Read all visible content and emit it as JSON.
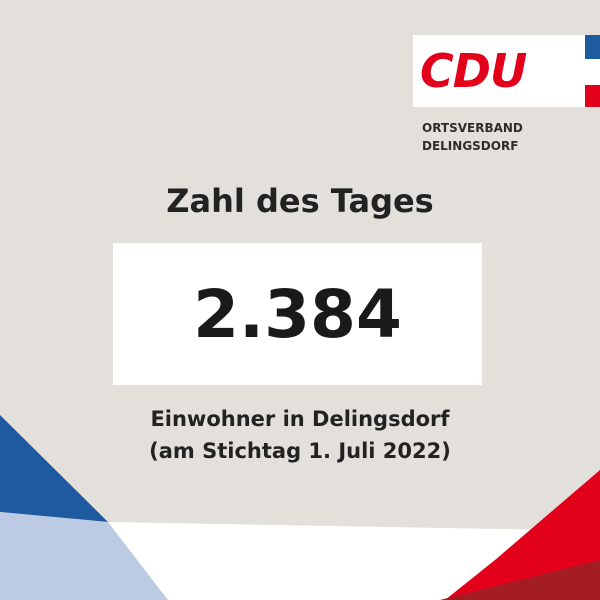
{
  "logo": {
    "text": "CDU",
    "org_line1": "ORTSVERBAND",
    "org_line2": "DELINGSDORF"
  },
  "title": "Zahl des Tages",
  "number": "2.384",
  "caption": {
    "line1": "Einwohner in Delingsdorf",
    "line2": "(am Stichtag 1. Juli 2022)"
  }
}
